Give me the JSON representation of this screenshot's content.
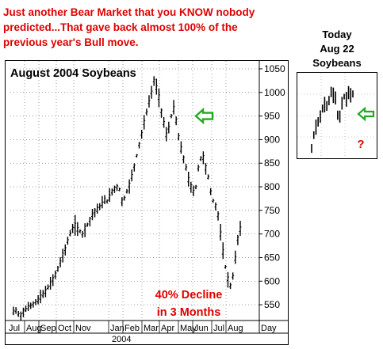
{
  "headline": "Just another Bear Market that you KNOW nobody\npredicted...That gave back almost 100% of the\nprevious year's Bull move.",
  "today_label": "Today\nAug 22\nSoybeans",
  "inset_question": "?",
  "colors": {
    "headline": "#e00000",
    "arrow": "#22aa22",
    "annotation": "#e00000",
    "bars": "#000000"
  },
  "chart_data": {
    "type": "line",
    "title": "August 2004 Soybeans",
    "annotation": "40% Decline\nin 3 Months",
    "xlabel": "",
    "ylabel": "",
    "ylim": [
      520,
      1060
    ],
    "yticks": [
      550,
      600,
      650,
      700,
      750,
      800,
      850,
      900,
      950,
      1000,
      1050
    ],
    "x_tick_labels": [
      "Jul",
      "Aug",
      "Sep",
      "Oct",
      "Nov",
      "Jan",
      "Feb",
      "Mar",
      "Apr",
      "May",
      "Jun",
      "Jul",
      "Aug",
      "Day"
    ],
    "x_year_label": "2004",
    "grid": true,
    "series": [
      {
        "values": [
          535,
          538,
          530,
          528,
          536,
          540,
          545,
          548,
          552,
          556,
          560,
          566,
          572,
          578,
          586,
          594,
          604,
          614,
          626,
          640,
          655,
          668,
          685,
          700,
          712,
          718,
          710,
          706,
          700,
          712,
          720,
          730,
          740,
          748,
          752,
          758,
          764,
          772,
          770,
          778,
          790,
          796,
          800,
          794,
          770,
          776,
          790,
          804,
          822,
          844,
          866,
          890,
          912,
          936,
          958,
          980,
          1000,
          1025,
          1010,
          990,
          960,
          935,
          910,
          925,
          950,
          965,
          940,
          905,
          880,
          860,
          840,
          815,
          800,
          790,
          800,
          840,
          860,
          862,
          840,
          820,
          790,
          770,
          760,
          740,
          700,
          662,
          630,
          605,
          590,
          610,
          648,
          690,
          710
        ]
      }
    ]
  },
  "inset_chart_data": {
    "type": "line",
    "values": [
      0.1,
      0.3,
      0.42,
      0.5,
      0.58,
      0.7,
      0.76,
      0.74,
      0.82,
      0.95,
      0.9,
      0.86,
      0.6,
      0.58,
      0.78,
      0.88,
      0.84,
      0.94,
      0.9,
      0.92
    ]
  }
}
